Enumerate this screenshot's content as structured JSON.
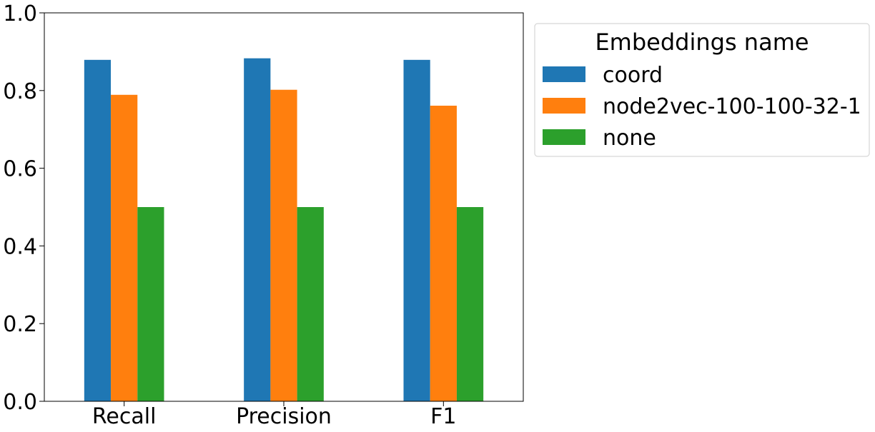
{
  "chart_data": {
    "type": "bar",
    "title": "",
    "xlabel": "",
    "ylabel": "",
    "categories": [
      "Recall",
      "Precision",
      "F1"
    ],
    "series": [
      {
        "name": "coord",
        "color": "#1f77b4",
        "values": [
          0.879,
          0.883,
          0.879
        ]
      },
      {
        "name": "node2vec-100-100-32-1",
        "color": "#ff7f0e",
        "values": [
          0.789,
          0.802,
          0.761
        ]
      },
      {
        "name": "none",
        "color": "#2ca02c",
        "values": [
          0.5,
          0.5,
          0.5
        ]
      }
    ],
    "ylim": [
      0,
      1.0
    ],
    "yticks": [
      "0.0",
      "0.2",
      "0.4",
      "0.6",
      "0.8",
      "1.0"
    ],
    "grid": false,
    "legend": {
      "title": "Embeddings name",
      "placement": "outside-top-right"
    }
  }
}
